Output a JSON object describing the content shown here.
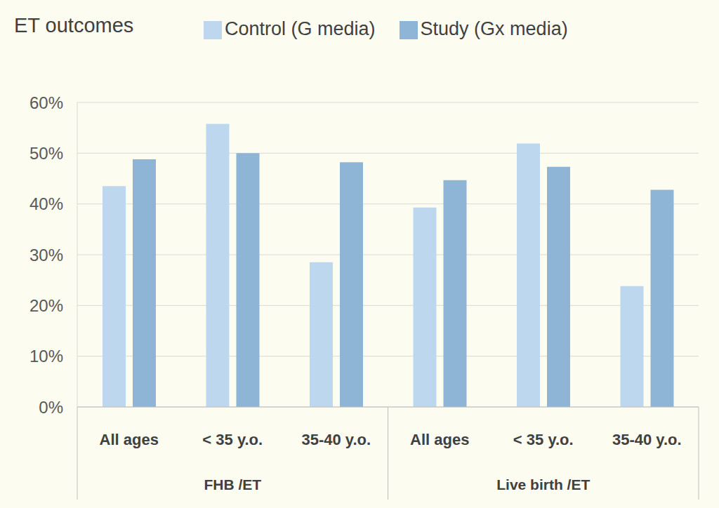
{
  "chart_data": {
    "type": "bar",
    "title": "ET outcomes",
    "groups": [
      {
        "name": "FHB /ET",
        "categories": [
          "All ages",
          "< 35 y.o.",
          "35-40 y.o."
        ]
      },
      {
        "name": "Live birth /ET",
        "categories": [
          "All ages",
          "< 35 y.o.",
          "35-40 y.o."
        ]
      }
    ],
    "series": [
      {
        "name": "Control (G media)",
        "color": "#bdd7ee",
        "values": [
          43.5,
          55.8,
          28.5,
          39.3,
          51.9,
          23.8
        ]
      },
      {
        "name": "Study (Gx media)",
        "color": "#8eb4d6",
        "values": [
          48.8,
          50.0,
          48.2,
          44.7,
          47.3,
          42.8
        ]
      }
    ],
    "ylim": [
      0,
      60
    ],
    "yticks": [
      {
        "value": 0,
        "label": "0%"
      },
      {
        "value": 10,
        "label": "10%"
      },
      {
        "value": 20,
        "label": "20%"
      },
      {
        "value": 30,
        "label": "30%"
      },
      {
        "value": 40,
        "label": "40%"
      },
      {
        "value": 50,
        "label": "50%"
      },
      {
        "value": 60,
        "label": "60%"
      }
    ],
    "grid": true,
    "legend": "top"
  }
}
